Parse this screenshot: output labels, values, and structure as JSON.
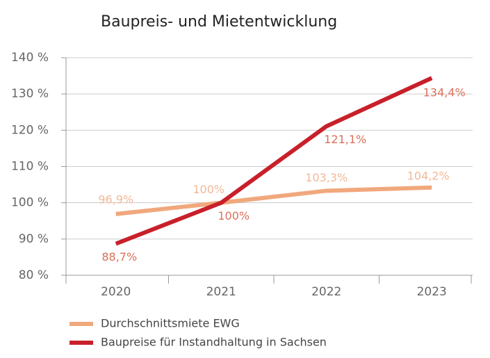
{
  "chart_data": {
    "type": "line",
    "title": "Baupreis- und Mietentwicklung",
    "categories": [
      "2020",
      "2021",
      "2022",
      "2023"
    ],
    "series": [
      {
        "name": "Durchschnittsmiete EWG",
        "color": "#f0a87c",
        "label_color": "#f2b896",
        "values": [
          96.9,
          100,
          103.3,
          104.2
        ],
        "value_labels": [
          "96,9%",
          "100%",
          "103,3%",
          "104,2%"
        ]
      },
      {
        "name": "Baupreise für Instandhaltung in Sachsen",
        "color": "#c8202a",
        "label_color": "#d9705a",
        "values": [
          88.7,
          100,
          121.1,
          134.4
        ],
        "value_labels": [
          "88,7%",
          "100%",
          "121,1%",
          "134,4%"
        ]
      }
    ],
    "ylim": [
      80,
      140
    ],
    "yticks": [
      {
        "value": 80,
        "label": "80 %"
      },
      {
        "value": 90,
        "label": "90 %"
      },
      {
        "value": 100,
        "label": "100 %"
      },
      {
        "value": 110,
        "label": "110 %"
      },
      {
        "value": 120,
        "label": "120 %"
      },
      {
        "value": 130,
        "label": "130 %"
      },
      {
        "value": 140,
        "label": "140 %"
      }
    ],
    "grid": true
  }
}
